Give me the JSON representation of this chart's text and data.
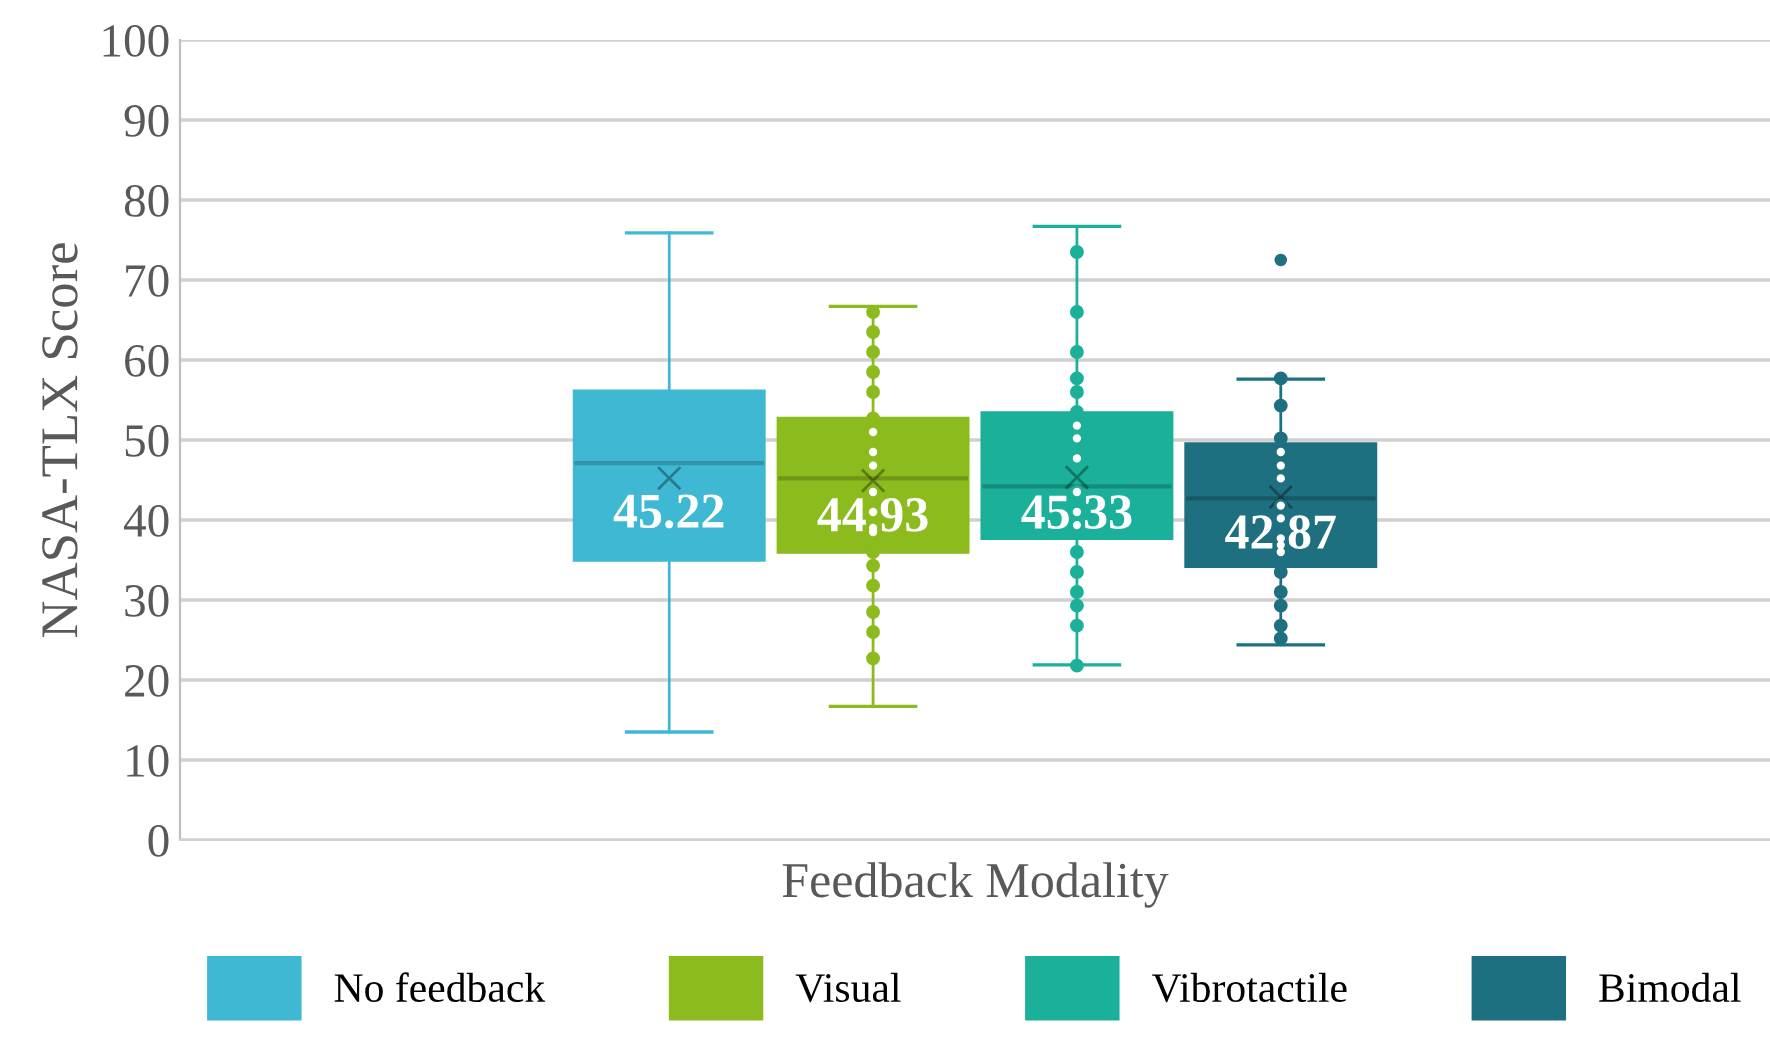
{
  "chart_data": {
    "type": "box",
    "xlabel": "Feedback Modality",
    "ylabel": "NASA-TLX Score",
    "categories": [
      null
    ],
    "series": [
      {
        "name": "No feedback",
        "color": "#3fb8d4",
        "boxes": [
          {
            "low": 13.5,
            "q1": 35,
            "median": 47.1,
            "q3": 56.1,
            "high": 75.9,
            "mean": 45.22
          }
        ]
      },
      {
        "name": "Visual",
        "color": "#8cbb1e",
        "boxes": [
          {
            "low": 16.7,
            "q1": 36,
            "median": 45.2,
            "q3": 52.7,
            "high": 66.7,
            "mean": 44.93
          }
        ]
      },
      {
        "name": "Vibrotactile",
        "color": "#1bb09a",
        "boxes": [
          {
            "low": 21.9,
            "q1": 37.7,
            "median": 44.2,
            "q3": 53.4,
            "high": 76.7,
            "mean": 45.33
          }
        ]
      },
      {
        "name": "Bimodal",
        "color": "#1e7080",
        "boxes": [
          {
            "low": 24.4,
            "q1": 34.2,
            "median": 42.7,
            "q3": 49.5,
            "high": 57.6,
            "mean": 42.87,
            "outliers": [
              72.5
            ]
          }
        ]
      },
      {
        "type": "scatter",
        "color": "#8cbb1e",
        "x": [
          null,
          null,
          null,
          null,
          null,
          null,
          null,
          null,
          null,
          null,
          null,
          null,
          null,
          null,
          null,
          null,
          null,
          null
        ],
        "values": [
          66,
          63.5,
          61,
          58.5,
          56,
          52.7,
          51,
          48.5,
          46.8,
          43.5,
          41,
          38.5,
          36,
          34.3,
          31.8,
          28.5,
          26,
          22.7
        ]
      },
      {
        "type": "scatter",
        "color": "#1bb09a",
        "x": [
          null,
          null,
          null,
          null,
          null,
          null,
          null,
          null,
          null,
          null,
          null,
          null,
          null,
          null,
          null,
          null,
          null
        ],
        "values": [
          73.5,
          66,
          61,
          57.7,
          56,
          53.5,
          51.8,
          50.2,
          47.7,
          43.5,
          41,
          36,
          33.5,
          31,
          29.3,
          26.8,
          21.8
        ]
      },
      {
        "type": "scatter",
        "color": "#1e7080",
        "x": [
          null,
          null,
          null,
          null,
          null,
          null,
          null,
          null,
          null,
          null,
          null,
          null,
          null,
          null,
          null
        ],
        "values": [
          57.7,
          54.3,
          50.2,
          48.5,
          46.8,
          45.2,
          41.8,
          40.2,
          37.7,
          36,
          33.5,
          31,
          29.3,
          26.8,
          25.2
        ]
      }
    ],
    "annotations": [
      "45.22",
      "44.93",
      "45.33",
      "42.87"
    ],
    "ylim": [
      0,
      100
    ],
    "yticks": [
      0,
      10,
      20,
      30,
      40,
      50,
      60,
      70,
      80,
      90,
      100
    ],
    "grid": "y",
    "legend": "bottom",
    "tick_labels": "y",
    "marker": "circle"
  }
}
